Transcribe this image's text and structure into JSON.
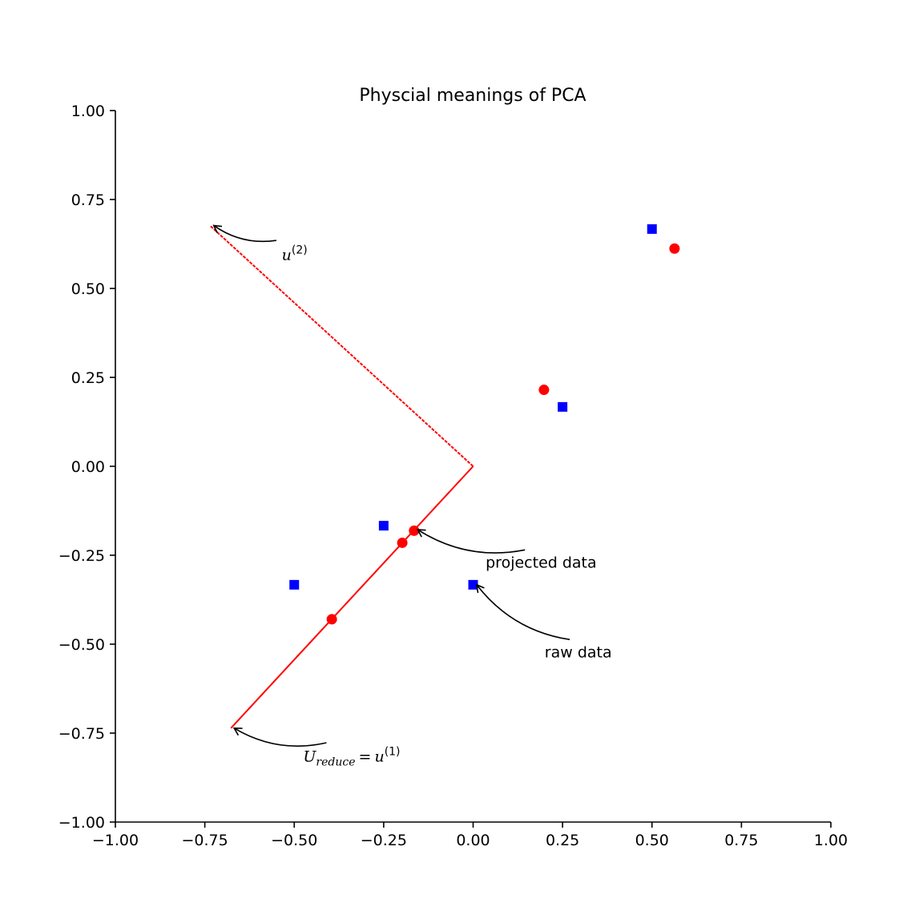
{
  "chart_data": {
    "type": "scatter",
    "title": "Physcial meanings of PCA",
    "xlabel": "",
    "ylabel": "",
    "xlim": [
      -1.0,
      1.0
    ],
    "ylim": [
      -1.0,
      1.0
    ],
    "grid": false,
    "x_ticks": [
      -1.0,
      -0.75,
      -0.5,
      -0.25,
      0.0,
      0.25,
      0.5,
      0.75,
      1.0
    ],
    "y_ticks": [
      -1.0,
      -0.75,
      -0.5,
      -0.25,
      0.0,
      0.25,
      0.5,
      0.75,
      1.0
    ],
    "x_tick_labels": [
      "−1.00",
      "−0.75",
      "−0.50",
      "−0.25",
      "0.00",
      "0.25",
      "0.50",
      "0.75",
      "1.00"
    ],
    "y_tick_labels": [
      "−1.00",
      "−0.75",
      "−0.50",
      "−0.25",
      "0.00",
      "0.25",
      "0.50",
      "0.75",
      "1.00"
    ],
    "series": [
      {
        "kind": "points",
        "marker": "square",
        "color": "#0000ff",
        "points": [
          [
            -0.5,
            -0.333
          ],
          [
            0.0,
            -0.333
          ],
          [
            -0.25,
            -0.167
          ],
          [
            0.25,
            0.167
          ],
          [
            0.5,
            0.667
          ]
        ]
      },
      {
        "kind": "points",
        "marker": "circle",
        "color": "#ff0000",
        "points": [
          [
            -0.395,
            -0.43
          ],
          [
            -0.198,
            -0.215
          ],
          [
            -0.165,
            -0.181
          ],
          [
            0.198,
            0.215
          ],
          [
            0.563,
            0.612
          ]
        ]
      },
      {
        "kind": "line",
        "style": "solid",
        "color": "#ff0000",
        "points": [
          [
            0.0,
            0.0
          ],
          [
            -0.677,
            -0.736
          ]
        ]
      },
      {
        "kind": "line",
        "style": "dashed",
        "color": "#ff0000",
        "points": [
          [
            0.0,
            0.0
          ],
          [
            -0.736,
            0.677
          ]
        ]
      }
    ],
    "annotations": [
      {
        "id": "u2",
        "math": true,
        "main": "u",
        "sup": "(2)",
        "text_pos": [
          -0.535,
          0.58
        ],
        "arrow_from": [
          -0.55,
          0.635
        ],
        "arrow_to": [
          -0.725,
          0.677
        ],
        "rad": 0.2
      },
      {
        "id": "projected",
        "math": false,
        "text": "projected data",
        "text_pos": [
          0.035,
          -0.285
        ],
        "arrow_from": [
          0.145,
          -0.235
        ],
        "arrow_to": [
          -0.155,
          -0.178
        ],
        "rad": 0.2
      },
      {
        "id": "raw",
        "math": false,
        "text": "raw data",
        "text_pos": [
          0.2,
          -0.537
        ],
        "arrow_from": [
          0.27,
          -0.487
        ],
        "arrow_to": [
          0.01,
          -0.333
        ],
        "rad": 0.2
      },
      {
        "id": "ureduce",
        "math": true,
        "main": "U",
        "sub": "reduce",
        "eq": "=",
        "main2": "u",
        "sup": "(1)",
        "text_pos": [
          -0.475,
          -0.83
        ],
        "arrow_from": [
          -0.41,
          -0.777
        ],
        "arrow_to": [
          -0.668,
          -0.736
        ],
        "rad": 0.2
      }
    ]
  }
}
